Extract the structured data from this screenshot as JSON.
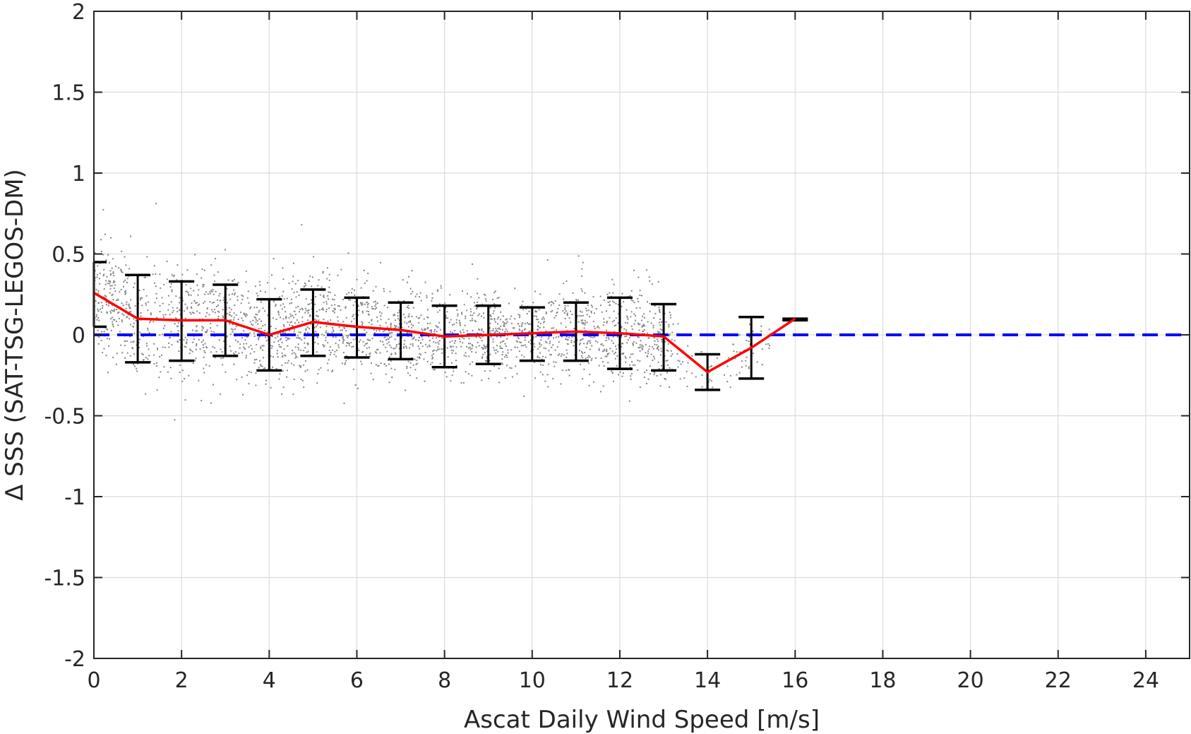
{
  "chart_data": {
    "type": "scatter",
    "title": "",
    "xlabel": "Ascat Daily Wind Speed [m/s]",
    "ylabel": "Δ SSS (SAT-TSG-LEGOS-DM)",
    "xlim": [
      0,
      25
    ],
    "ylim": [
      -2,
      2
    ],
    "xticks": [
      "0",
      "2",
      "4",
      "6",
      "8",
      "10",
      "12",
      "14",
      "16",
      "18",
      "20",
      "22",
      "24"
    ],
    "yticks": [
      "-2",
      "-1.5",
      "-1",
      "-0.5",
      "0",
      "0.5",
      "1",
      "1.5",
      "2"
    ],
    "grid": true,
    "series": [
      {
        "type": "line",
        "color": "#ff0000",
        "x": [
          0,
          1,
          2,
          3,
          4,
          5,
          6,
          7,
          8,
          9,
          10,
          11,
          12,
          13,
          14,
          15,
          16
        ],
        "y": [
          0.26,
          0.1,
          0.09,
          0.09,
          0.0,
          0.08,
          0.05,
          0.03,
          -0.01,
          0.0,
          0.01,
          0.02,
          0.01,
          -0.01,
          -0.23,
          -0.08,
          0.1
        ]
      },
      {
        "type": "errorbar",
        "color": "#000000",
        "x": [
          0,
          1,
          2,
          3,
          4,
          5,
          6,
          7,
          8,
          9,
          10,
          11,
          12,
          13,
          14,
          15,
          16
        ],
        "lower": [
          0.05,
          -0.17,
          -0.16,
          -0.13,
          -0.22,
          -0.13,
          -0.14,
          -0.15,
          -0.2,
          -0.18,
          -0.16,
          -0.16,
          -0.21,
          -0.22,
          -0.34,
          -0.27,
          0.09
        ],
        "upper": [
          0.45,
          0.37,
          0.33,
          0.31,
          0.22,
          0.28,
          0.23,
          0.2,
          0.18,
          0.18,
          0.17,
          0.2,
          0.23,
          0.19,
          -0.12,
          0.11,
          0.1
        ]
      },
      {
        "type": "hline",
        "color": "#0000ff",
        "style": "dashed",
        "y": 0
      },
      {
        "type": "scatter-cloud",
        "color": "#808080",
        "x_range": [
          0,
          15.4
        ],
        "note_spread_by_bin": [
          {
            "x": 0,
            "center": 0.26,
            "spread": 0.2
          },
          {
            "x": 1,
            "center": 0.1,
            "spread": 0.25
          },
          {
            "x": 2,
            "center": 0.09,
            "spread": 0.25
          },
          {
            "x": 3,
            "center": 0.09,
            "spread": 0.22
          },
          {
            "x": 4,
            "center": 0.0,
            "spread": 0.22
          },
          {
            "x": 5,
            "center": 0.08,
            "spread": 0.21
          },
          {
            "x": 6,
            "center": 0.05,
            "spread": 0.19
          },
          {
            "x": 7,
            "center": 0.03,
            "spread": 0.18
          },
          {
            "x": 8,
            "center": -0.01,
            "spread": 0.19
          },
          {
            "x": 9,
            "center": 0.0,
            "spread": 0.18
          },
          {
            "x": 10,
            "center": 0.01,
            "spread": 0.17
          },
          {
            "x": 11,
            "center": 0.02,
            "spread": 0.18
          },
          {
            "x": 12,
            "center": 0.01,
            "spread": 0.2
          },
          {
            "x": 13,
            "center": -0.01,
            "spread": 0.2
          },
          {
            "x": 14,
            "center": -0.23,
            "spread": 0.07
          },
          {
            "x": 15,
            "center": -0.08,
            "spread": 0.12
          }
        ]
      }
    ]
  }
}
